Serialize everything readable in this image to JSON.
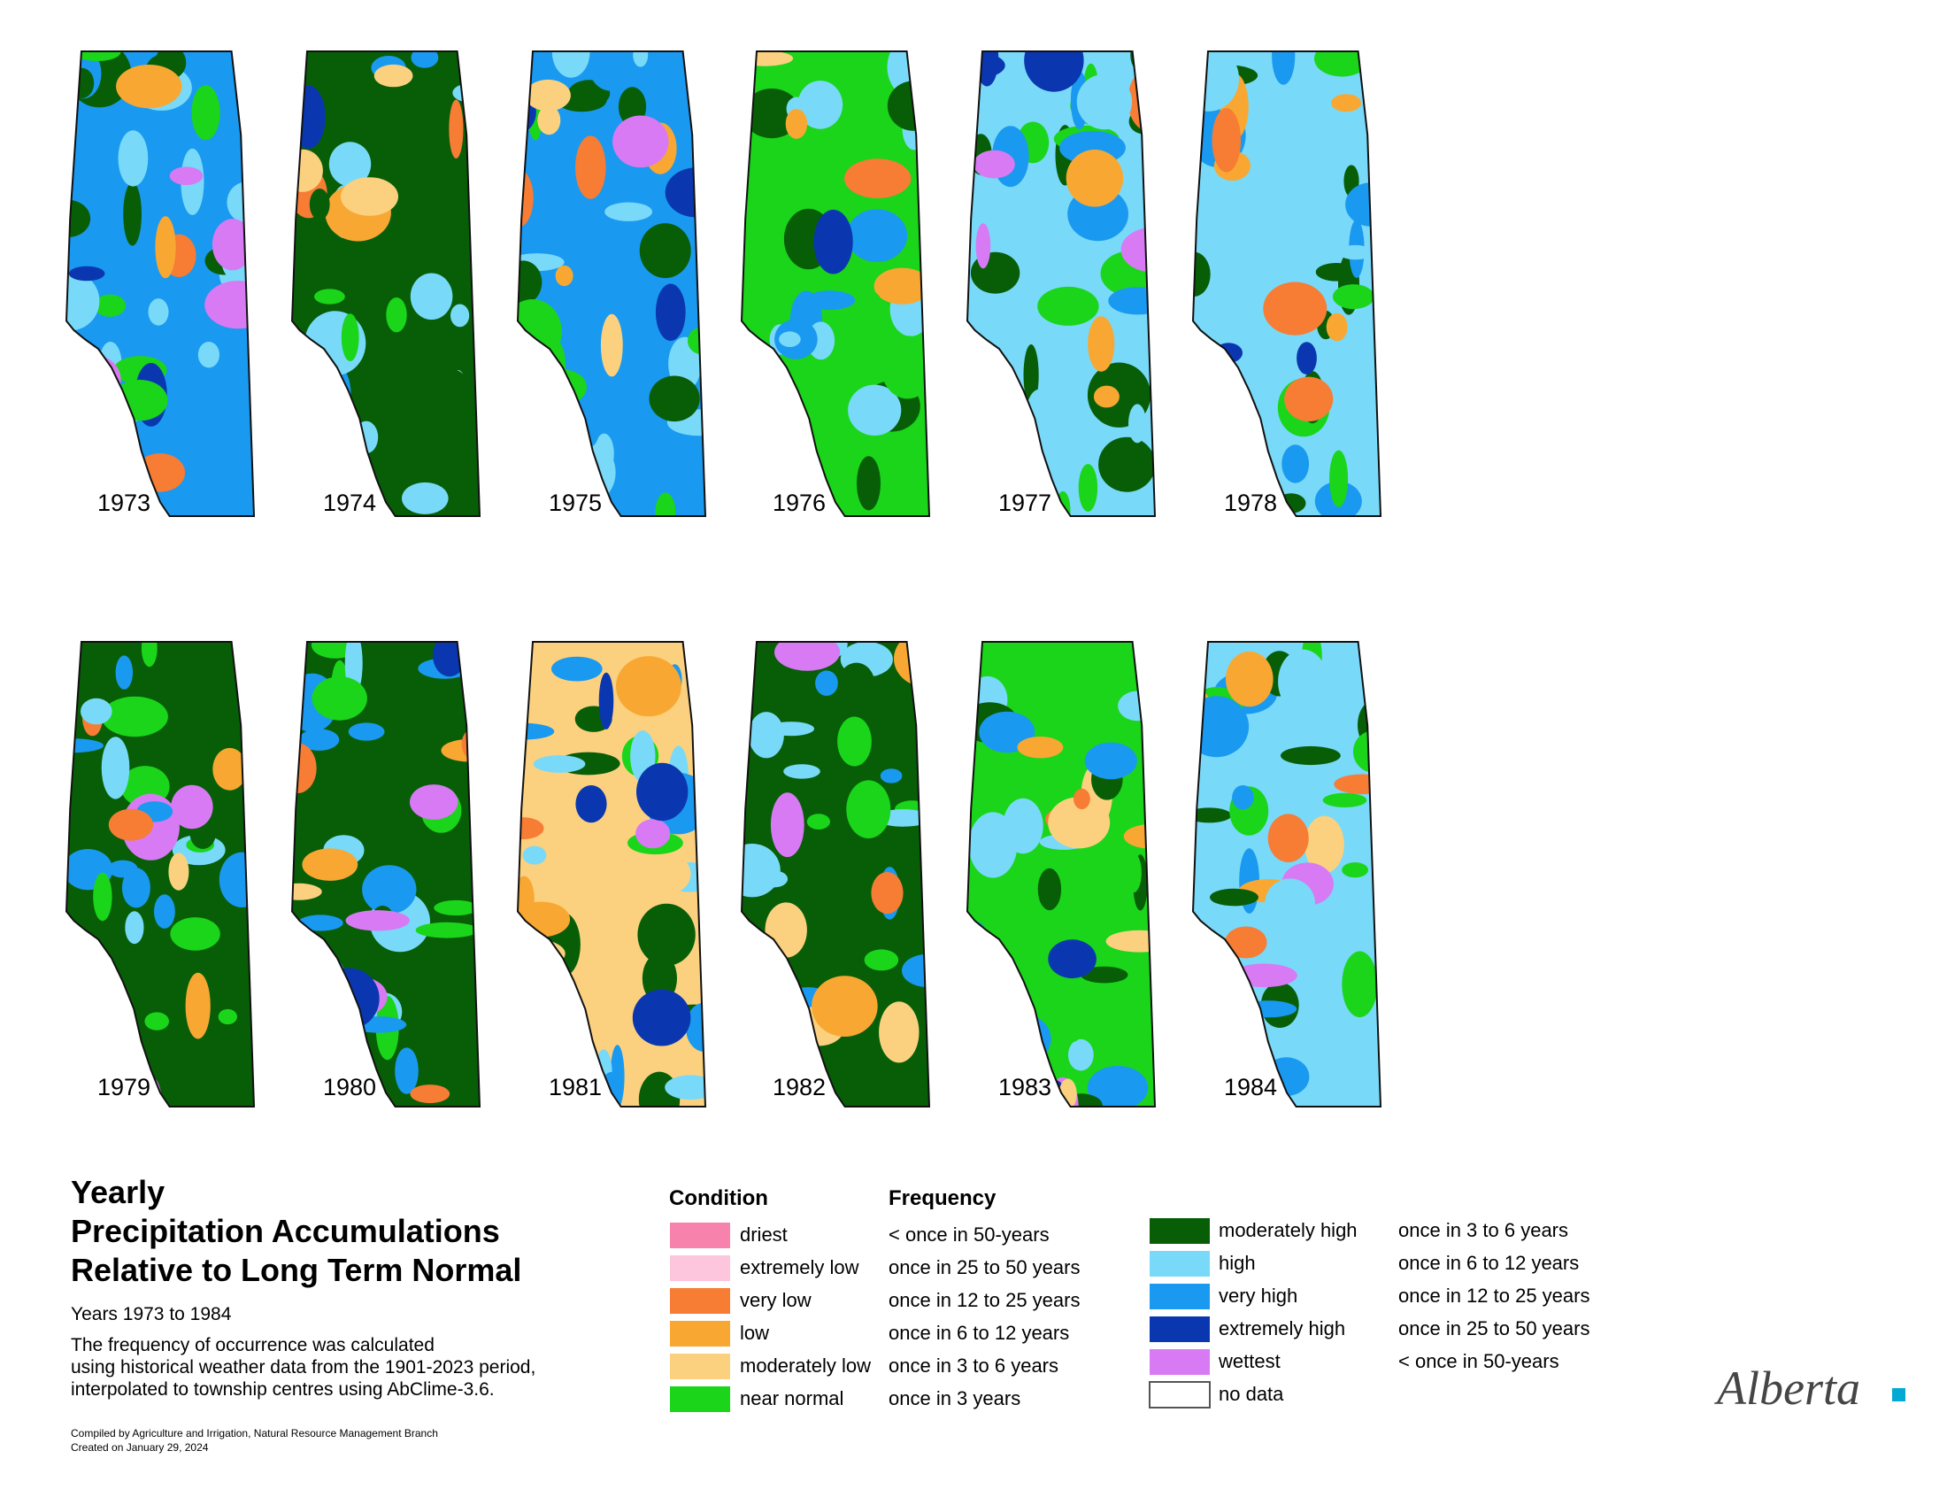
{
  "maps": [
    {
      "year": "1973",
      "dominant": "very high"
    },
    {
      "year": "1974",
      "dominant": "moderately high"
    },
    {
      "year": "1975",
      "dominant": "very high"
    },
    {
      "year": "1976",
      "dominant": "near normal"
    },
    {
      "year": "1977",
      "dominant": "high"
    },
    {
      "year": "1978",
      "dominant": "high"
    },
    {
      "year": "1979",
      "dominant": "moderately high"
    },
    {
      "year": "1980",
      "dominant": "moderately high"
    },
    {
      "year": "1981",
      "dominant": "moderately low"
    },
    {
      "year": "1982",
      "dominant": "moderately high"
    },
    {
      "year": "1983",
      "dominant": "near normal"
    },
    {
      "year": "1984",
      "dominant": "high"
    }
  ],
  "title": {
    "line1": "Yearly",
    "line2": "Precipitation Accumulations",
    "line3": "Relative to Long Term Normal"
  },
  "subtitle": "Years 1973 to 1984",
  "description": {
    "line1": "The frequency of occurrence was calculated",
    "line2": "using historical weather data from the 1901-2023 period,",
    "line3": "interpolated to township centres using AbClime-3.6."
  },
  "credits": {
    "compiled": "Compiled by Agriculture and Irrigation, Natural Resource Management Branch",
    "created": "Created on January 29, 2024"
  },
  "legend": {
    "condition_header": "Condition",
    "frequency_header": "Frequency",
    "left": [
      {
        "condition": "driest",
        "frequency": "< once in 50-years",
        "color": "#f783ad"
      },
      {
        "condition": "extremely low",
        "frequency": "once in 25 to 50 years",
        "color": "#fdc6dc"
      },
      {
        "condition": "very low",
        "frequency": "once in 12 to 25 years",
        "color": "#f77c34"
      },
      {
        "condition": "low",
        "frequency": "once in 6 to 12 years",
        "color": "#f8a832"
      },
      {
        "condition": "moderately low",
        "frequency": "once in 3 to 6 years",
        "color": "#fbd17f"
      },
      {
        "condition": "near normal",
        "frequency": "once in 3 years",
        "color": "#1ad51a"
      }
    ],
    "right": [
      {
        "condition": "moderately high",
        "frequency": "once in 3 to 6 years",
        "color": "#075e07"
      },
      {
        "condition": "high",
        "frequency": "once in 6 to 12 years",
        "color": "#79d9f8"
      },
      {
        "condition": "very high",
        "frequency": "once in 12 to 25 years",
        "color": "#1a99f0"
      },
      {
        "condition": "extremely high",
        "frequency": "once in 25 to 50 years",
        "color": "#0a37b0"
      },
      {
        "condition": "wettest",
        "frequency": "< once in 50-years",
        "color": "#d87af4"
      },
      {
        "condition": "no data",
        "frequency": "",
        "color": "#ffffff"
      }
    ]
  },
  "logo": {
    "text": "Alberta",
    "accent": "#00aad2"
  }
}
